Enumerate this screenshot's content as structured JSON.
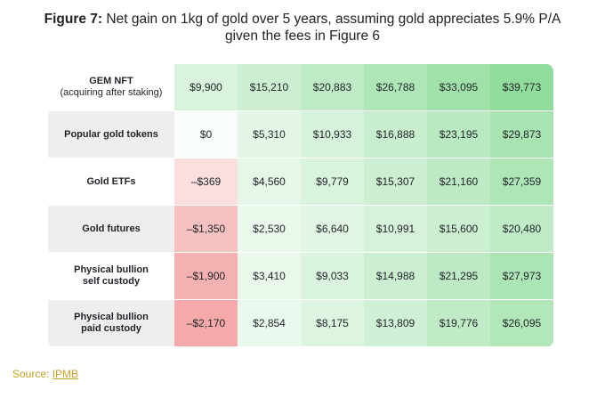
{
  "title": {
    "prefix": "Figure 7:",
    "line1": "Net gain on 1kg of gold over 5 years, assuming gold appreciates 5.9% P/A",
    "line2": "given the fees in Figure 6"
  },
  "source": {
    "label": "Source:",
    "link": "IPMB"
  },
  "chart_data": {
    "type": "table",
    "rows": [
      {
        "label": "GEM NFT",
        "sublabel": "(acquiring after staking)",
        "shaded": false,
        "values": [
          9900,
          15210,
          20883,
          26788,
          33095,
          39773
        ],
        "display": [
          "$9,900",
          "$15,210",
          "$20,883",
          "$26,788",
          "$33,095",
          "$39,773"
        ]
      },
      {
        "label": "Popular gold tokens",
        "sublabel": "",
        "shaded": true,
        "values": [
          0,
          5310,
          10933,
          16888,
          23195,
          29873
        ],
        "display": [
          "$0",
          "$5,310",
          "$10,933",
          "$16,888",
          "$23,195",
          "$29,873"
        ]
      },
      {
        "label": "Gold ETFs",
        "sublabel": "",
        "shaded": false,
        "values": [
          -369,
          4560,
          9779,
          15307,
          21160,
          27359
        ],
        "display": [
          "–$369",
          "$4,560",
          "$9,779",
          "$15,307",
          "$21,160",
          "$27,359"
        ]
      },
      {
        "label": "Gold futures",
        "sublabel": "",
        "shaded": true,
        "values": [
          -1350,
          2530,
          6640,
          10991,
          15600,
          20480
        ],
        "display": [
          "–$1,350",
          "$2,530",
          "$6,640",
          "$10,991",
          "$15,600",
          "$20,480"
        ]
      },
      {
        "label": "Physical bullion",
        "sublabel": "self custody",
        "shaded": false,
        "values": [
          -1900,
          3410,
          9033,
          14988,
          21295,
          27973
        ],
        "display": [
          "–$1,900",
          "$3,410",
          "$9,033",
          "$14,988",
          "$21,295",
          "$27,973"
        ]
      },
      {
        "label": "Physical bullion",
        "sublabel": "paid custody",
        "shaded": true,
        "values": [
          -2170,
          2854,
          8175,
          13809,
          19776,
          26095
        ],
        "display": [
          "–$2,170",
          "$2,854",
          "$8,175",
          "$13,809",
          "$19,776",
          "$26,095"
        ]
      }
    ],
    "color_scale": {
      "negative": "#f4a9aa",
      "neutral": "#ffffff",
      "positive": "#8fdc9b"
    }
  }
}
